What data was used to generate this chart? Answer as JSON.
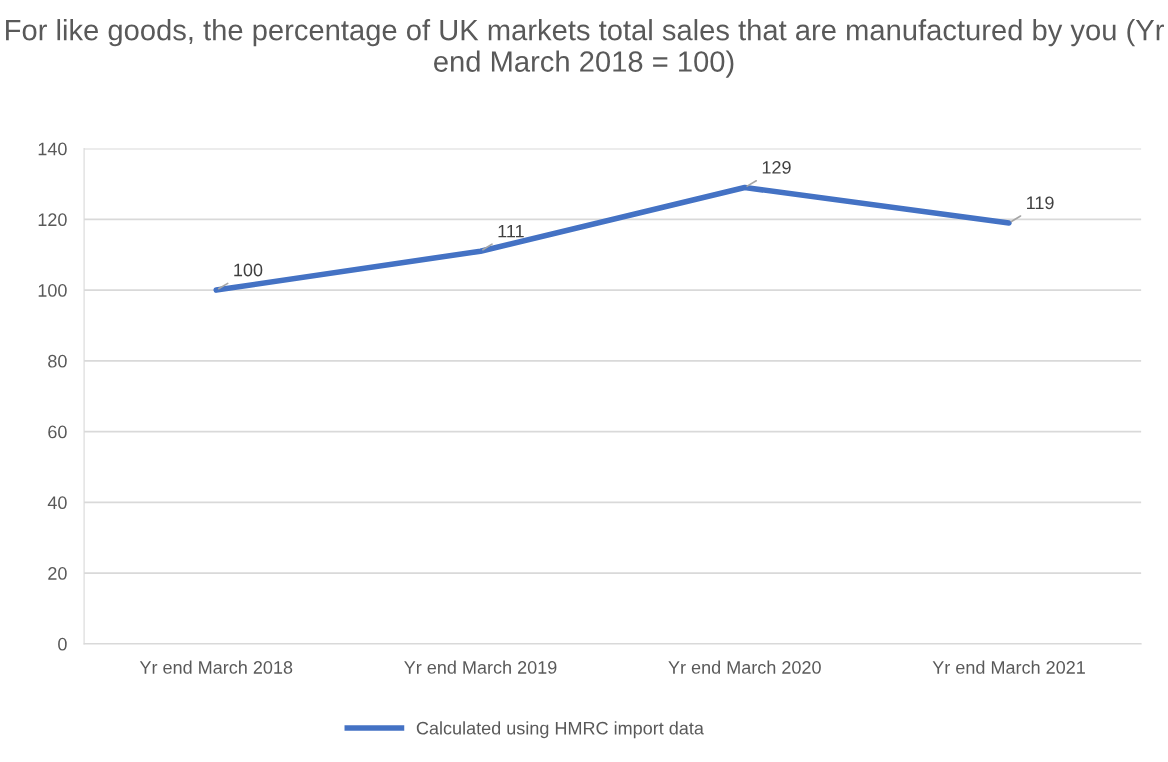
{
  "chart_data": {
    "type": "line",
    "title": "For like goods, the percentage of UK markets total sales that are manufactured by you (Yr end March 2018 = 100)",
    "categories": [
      "Yr end March 2018",
      "Yr end March 2019",
      "Yr end March 2020",
      "Yr end March 2021"
    ],
    "series": [
      {
        "name": "Calculated using HMRC import data",
        "color": "#4472c4",
        "values": [
          100,
          111,
          129,
          119
        ]
      }
    ],
    "ylim": [
      0,
      140
    ],
    "yticks": [
      0,
      20,
      40,
      60,
      80,
      100,
      120,
      140
    ],
    "grid": "y",
    "legend": "bottom",
    "data_labels": true,
    "marker": "none",
    "line_style": "solid"
  }
}
